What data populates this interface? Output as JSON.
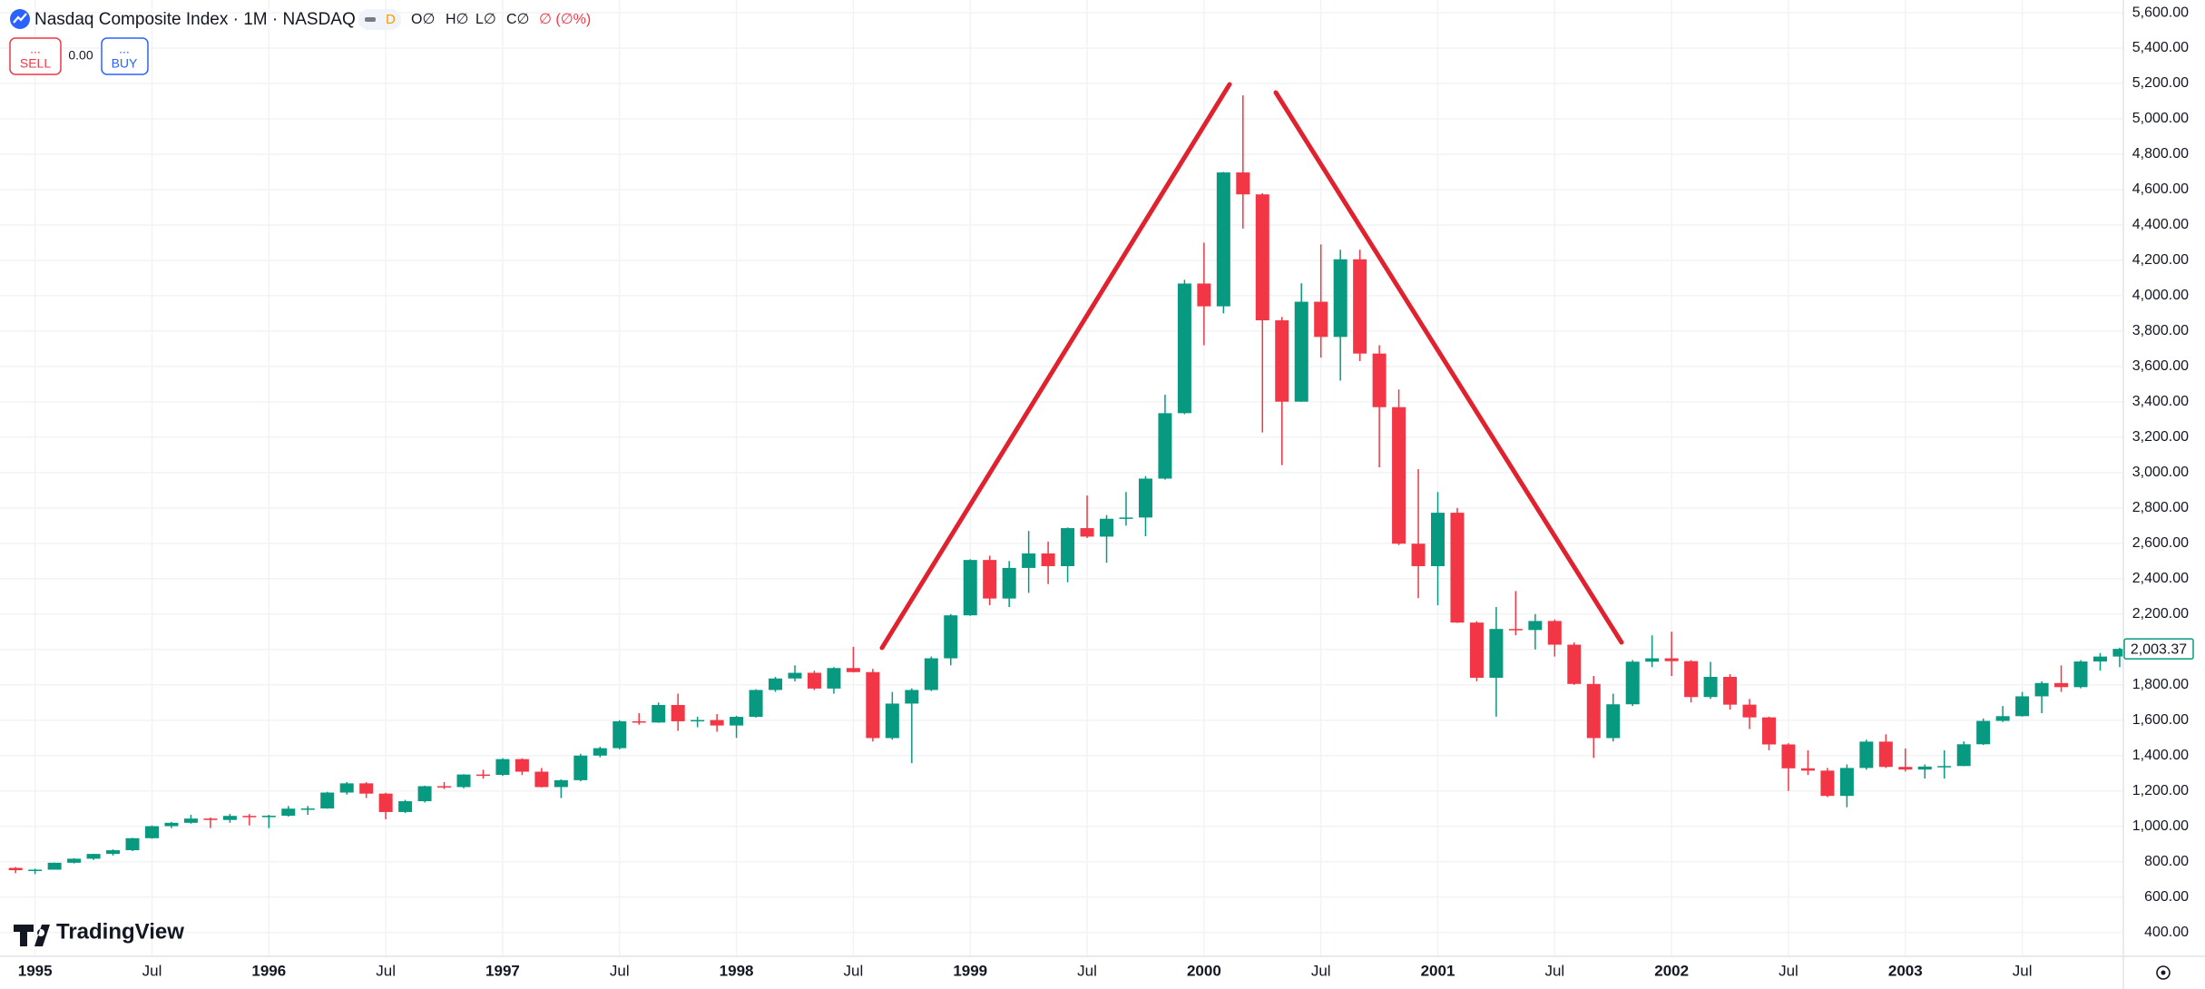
{
  "header": {
    "symbol_title": "Nasdaq Composite Index · 1M · NASDAQ",
    "badge": "D",
    "ohlc": [
      "O∅",
      "H∅",
      "L∅",
      "C∅",
      "∅ (∅%)"
    ],
    "sell_dots": "...",
    "sell_label": "SELL",
    "spread": "0.00",
    "buy_dots": "...",
    "buy_label": "BUY",
    "branding": "TradingView"
  },
  "chart_data": {
    "type": "candlestick",
    "categories": [
      null,
      "1995",
      null,
      null,
      null,
      null,
      null,
      "Jul",
      null,
      null,
      null,
      null,
      null,
      "1996",
      null,
      null,
      null,
      null,
      null,
      "Jul",
      null,
      null,
      null,
      null,
      null,
      "1997",
      null,
      null,
      null,
      null,
      null,
      "Jul",
      null,
      null,
      null,
      null,
      null,
      "1998",
      null,
      null,
      null,
      null,
      null,
      "Jul",
      null,
      null,
      null,
      null,
      null,
      "1999",
      null,
      null,
      null,
      null,
      null,
      "Jul",
      null,
      null,
      null,
      null,
      null,
      "2000",
      null,
      null,
      null,
      null,
      null,
      "Jul",
      null,
      null,
      null,
      null,
      null,
      "2001",
      null,
      null,
      null,
      null,
      null,
      "Jul",
      null,
      null,
      null,
      null,
      null,
      "2002",
      null,
      null,
      null,
      null,
      null,
      "Jul",
      null,
      null,
      null,
      null,
      null,
      "2003",
      null,
      null,
      null,
      null,
      null,
      "Jul",
      null,
      null,
      null,
      null,
      null
    ],
    "open": [
      765,
      752,
      755,
      794,
      817,
      844,
      865,
      933,
      1001,
      1020,
      1044,
      1036,
      1059,
      1052,
      1060,
      1100,
      1101,
      1191,
      1243,
      1185,
      1081,
      1142,
      1227,
      1222,
      1293,
      1291,
      1380,
      1309,
      1222,
      1261,
      1400,
      1442,
      1594,
      1587,
      1686,
      1594,
      1601,
      1570,
      1619,
      1771,
      1836,
      1868,
      1779,
      1895,
      1872,
      1499,
      1694,
      1771,
      1950,
      2193,
      2506,
      2288,
      2461,
      2543,
      2471,
      2686,
      2638,
      2739,
      2746,
      2966,
      3336,
      4069,
      3940,
      4697,
      4573,
      3861,
      3401,
      3966,
      3767,
      4206,
      3673,
      3370,
      2598,
      2471,
      2773,
      2152,
      1840,
      2116,
      2110,
      2161,
      2027,
      1805,
      1499,
      1690,
      1931,
      1950,
      1934,
      1731,
      1845,
      1688,
      1616,
      1463,
      1328,
      1315,
      1172,
      1330,
      1479,
      1336,
      1321,
      1338,
      1341,
      1464,
      1596,
      1623,
      1735,
      1810,
      1787,
      1932,
      1960
    ],
    "high": [
      770,
      760,
      795,
      820,
      845,
      870,
      935,
      1005,
      1025,
      1065,
      1050,
      1070,
      1070,
      1065,
      1115,
      1115,
      1195,
      1250,
      1250,
      1190,
      1150,
      1230,
      1250,
      1295,
      1320,
      1385,
      1385,
      1330,
      1265,
      1410,
      1450,
      1600,
      1640,
      1700,
      1750,
      1620,
      1635,
      1625,
      1775,
      1845,
      1910,
      1880,
      1900,
      2015,
      1890,
      1760,
      1780,
      1960,
      2200,
      2510,
      2530,
      2500,
      2670,
      2610,
      2690,
      2870,
      2760,
      2890,
      2980,
      3440,
      4090,
      4300,
      4700,
      5133,
      4580,
      3880,
      4070,
      4290,
      4260,
      4260,
      3720,
      3470,
      3020,
      2890,
      2800,
      2160,
      2240,
      2330,
      2200,
      2170,
      2040,
      1850,
      1750,
      1940,
      2080,
      2100,
      1940,
      1930,
      1860,
      1720,
      1620,
      1470,
      1430,
      1330,
      1350,
      1490,
      1520,
      1440,
      1350,
      1430,
      1480,
      1610,
      1680,
      1760,
      1820,
      1910,
      1940,
      1980,
      2010
    ],
    "low": [
      735,
      730,
      755,
      790,
      810,
      835,
      860,
      930,
      990,
      1015,
      990,
      1020,
      1005,
      990,
      1055,
      1065,
      1100,
      1180,
      1160,
      1040,
      1075,
      1135,
      1210,
      1215,
      1270,
      1285,
      1290,
      1220,
      1160,
      1255,
      1390,
      1435,
      1575,
      1585,
      1540,
      1560,
      1535,
      1500,
      1615,
      1760,
      1820,
      1770,
      1750,
      1870,
      1480,
      1490,
      1357,
      1765,
      1910,
      2190,
      2250,
      2240,
      2320,
      2370,
      2380,
      2630,
      2490,
      2700,
      2640,
      2960,
      3330,
      3720,
      3900,
      4380,
      3227,
      3042,
      3400,
      3650,
      3520,
      3630,
      3030,
      2590,
      2290,
      2250,
      2150,
      1820,
      1620,
      2080,
      2000,
      1960,
      1800,
      1387,
      1480,
      1680,
      1900,
      1850,
      1700,
      1720,
      1660,
      1550,
      1430,
      1200,
      1290,
      1165,
      1108,
      1320,
      1330,
      1310,
      1270,
      1270,
      1340,
      1460,
      1590,
      1620,
      1640,
      1760,
      1780,
      1880,
      1900
    ],
    "close": [
      752,
      755,
      794,
      817,
      844,
      865,
      933,
      1001,
      1020,
      1044,
      1036,
      1059,
      1052,
      1060,
      1100,
      1101,
      1191,
      1243,
      1185,
      1081,
      1142,
      1227,
      1222,
      1293,
      1291,
      1380,
      1309,
      1222,
      1261,
      1400,
      1442,
      1594,
      1587,
      1686,
      1594,
      1601,
      1570,
      1619,
      1771,
      1836,
      1868,
      1779,
      1895,
      1872,
      1499,
      1694,
      1771,
      1950,
      2193,
      2506,
      2288,
      2461,
      2543,
      2471,
      2686,
      2638,
      2739,
      2746,
      2966,
      3336,
      4069,
      3940,
      4697,
      4573,
      3861,
      3401,
      3966,
      3767,
      4206,
      3673,
      3370,
      2598,
      2471,
      2773,
      2152,
      1840,
      2116,
      2110,
      2161,
      2027,
      1805,
      1499,
      1690,
      1931,
      1950,
      1934,
      1731,
      1845,
      1688,
      1616,
      1463,
      1328,
      1315,
      1172,
      1330,
      1479,
      1336,
      1321,
      1338,
      1341,
      1464,
      1596,
      1623,
      1735,
      1810,
      1787,
      1932,
      1960,
      2003.37
    ],
    "last_value_label": "2,003.37",
    "up_color": "#089981",
    "down_color": "#f23645",
    "ylim": [
      265,
      5672
    ],
    "yticks": [
      {
        "value": 400,
        "label": "400.00"
      },
      {
        "value": 600,
        "label": "600.00"
      },
      {
        "value": 800,
        "label": "800.00"
      },
      {
        "value": 1000,
        "label": "1,000.00"
      },
      {
        "value": 1200,
        "label": "1,200.00"
      },
      {
        "value": 1400,
        "label": "1,400.00"
      },
      {
        "value": 1600,
        "label": "1,600.00"
      },
      {
        "value": 1800,
        "label": "1,800.00"
      },
      {
        "value": 2000,
        "label": "2,000.00"
      },
      {
        "value": 2200,
        "label": "2,200.00"
      },
      {
        "value": 2400,
        "label": "2,400.00"
      },
      {
        "value": 2600,
        "label": "2,600.00"
      },
      {
        "value": 2800,
        "label": "2,800.00"
      },
      {
        "value": 3000,
        "label": "3,000.00"
      },
      {
        "value": 3200,
        "label": "3,200.00"
      },
      {
        "value": 3400,
        "label": "3,400.00"
      },
      {
        "value": 3600,
        "label": "3,600.00"
      },
      {
        "value": 3800,
        "label": "3,800.00"
      },
      {
        "value": 4000,
        "label": "4,000.00"
      },
      {
        "value": 4200,
        "label": "4,200.00"
      },
      {
        "value": 4400,
        "label": "4,400.00"
      },
      {
        "value": 4600,
        "label": "4,600.00"
      },
      {
        "value": 4800,
        "label": "4,800.00"
      },
      {
        "value": 5000,
        "label": "5,000.00"
      },
      {
        "value": 5200,
        "label": "5,200.00"
      },
      {
        "value": 5400,
        "label": "5,400.00"
      },
      {
        "value": 5600,
        "label": "5,600.00"
      }
    ],
    "grid": true
  }
}
